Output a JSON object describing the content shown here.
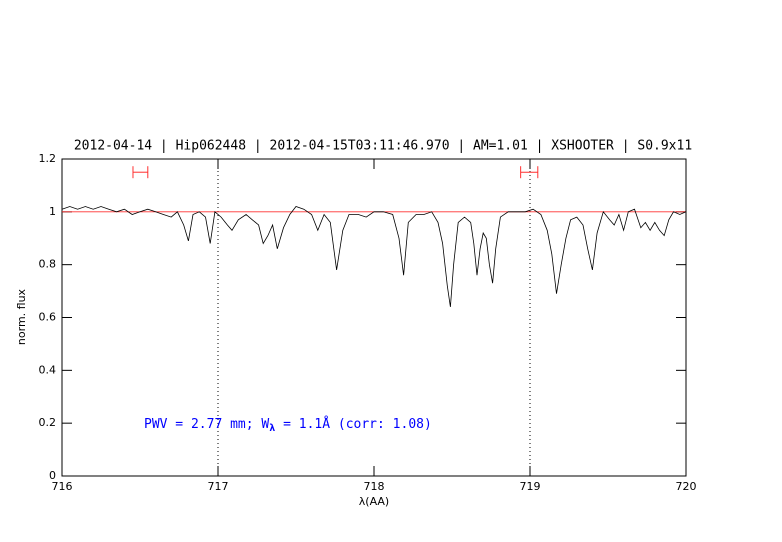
{
  "chart_data": {
    "type": "line",
    "title": "2012-04-14 | Hip062448 | 2012-04-15T03:11:46.970 | AM=1.01 | XSHOOTER | S0.9x11",
    "annotation": [
      "PWV = 2.77 mm; W",
      "λ",
      " = 1.1Å (corr: 1.08)"
    ],
    "xlabel": "λ(AA)",
    "ylabel": "norm. flux",
    "xlim": [
      716,
      720
    ],
    "ylim": [
      0,
      1.2
    ],
    "xticks": [
      716,
      717,
      718,
      719,
      720
    ],
    "yticks": [
      0,
      0.2,
      0.4,
      0.6,
      0.8,
      1,
      1.2
    ],
    "color": "#000000",
    "title_color": "#0000ff",
    "marker_color": "#ff3030",
    "hline": 1,
    "vlines": [
      717,
      719
    ],
    "intervals": [
      {
        "x": [
          716.455,
          716.55
        ],
        "y": 1.15
      },
      {
        "x": [
          718.94,
          719.05
        ],
        "y": 1.15
      }
    ],
    "x": [
      716.0,
      716.05,
      716.1,
      716.15,
      716.2,
      716.25,
      716.3,
      716.35,
      716.4,
      716.45,
      716.5,
      716.55,
      716.6,
      716.65,
      716.7,
      716.74,
      716.78,
      716.81,
      716.84,
      716.88,
      716.92,
      716.95,
      716.98,
      717.02,
      717.06,
      717.09,
      717.13,
      717.18,
      717.22,
      717.26,
      717.29,
      717.32,
      717.35,
      717.38,
      717.42,
      717.46,
      717.5,
      717.55,
      717.6,
      717.64,
      717.68,
      717.72,
      717.76,
      717.8,
      717.84,
      717.9,
      717.95,
      718.0,
      718.06,
      718.12,
      718.16,
      718.19,
      718.22,
      718.27,
      718.32,
      718.37,
      718.41,
      718.44,
      718.47,
      718.49,
      718.51,
      718.54,
      718.58,
      718.62,
      718.64,
      718.66,
      718.68,
      718.7,
      718.72,
      718.74,
      718.76,
      718.78,
      718.81,
      718.86,
      718.92,
      718.97,
      719.02,
      719.07,
      719.11,
      719.14,
      719.17,
      719.2,
      719.23,
      719.26,
      719.3,
      719.34,
      719.37,
      719.4,
      719.43,
      719.47,
      719.51,
      719.54,
      719.57,
      719.6,
      719.63,
      719.67,
      719.71,
      719.74,
      719.77,
      719.8,
      719.83,
      719.86,
      719.89,
      719.92,
      719.96,
      720.0
    ],
    "values": [
      1.01,
      1.02,
      1.01,
      1.02,
      1.01,
      1.02,
      1.01,
      1.0,
      1.01,
      0.99,
      1.0,
      1.01,
      1.0,
      0.99,
      0.98,
      1.0,
      0.95,
      0.89,
      0.99,
      1.0,
      0.98,
      0.88,
      1.0,
      0.98,
      0.95,
      0.93,
      0.97,
      0.99,
      0.97,
      0.95,
      0.88,
      0.91,
      0.95,
      0.86,
      0.94,
      0.99,
      1.02,
      1.01,
      0.99,
      0.93,
      0.99,
      0.96,
      0.78,
      0.93,
      0.99,
      0.99,
      0.98,
      1.0,
      1.0,
      0.99,
      0.9,
      0.76,
      0.96,
      0.99,
      0.99,
      1.0,
      0.96,
      0.88,
      0.72,
      0.64,
      0.8,
      0.96,
      0.98,
      0.96,
      0.88,
      0.76,
      0.86,
      0.92,
      0.9,
      0.8,
      0.73,
      0.86,
      0.98,
      1.0,
      1.0,
      1.0,
      1.01,
      0.99,
      0.93,
      0.84,
      0.69,
      0.8,
      0.9,
      0.97,
      0.98,
      0.95,
      0.86,
      0.78,
      0.92,
      1.0,
      0.97,
      0.95,
      0.99,
      0.93,
      1.0,
      1.01,
      0.94,
      0.96,
      0.93,
      0.96,
      0.93,
      0.91,
      0.97,
      1.0,
      0.99,
      1.0
    ]
  }
}
